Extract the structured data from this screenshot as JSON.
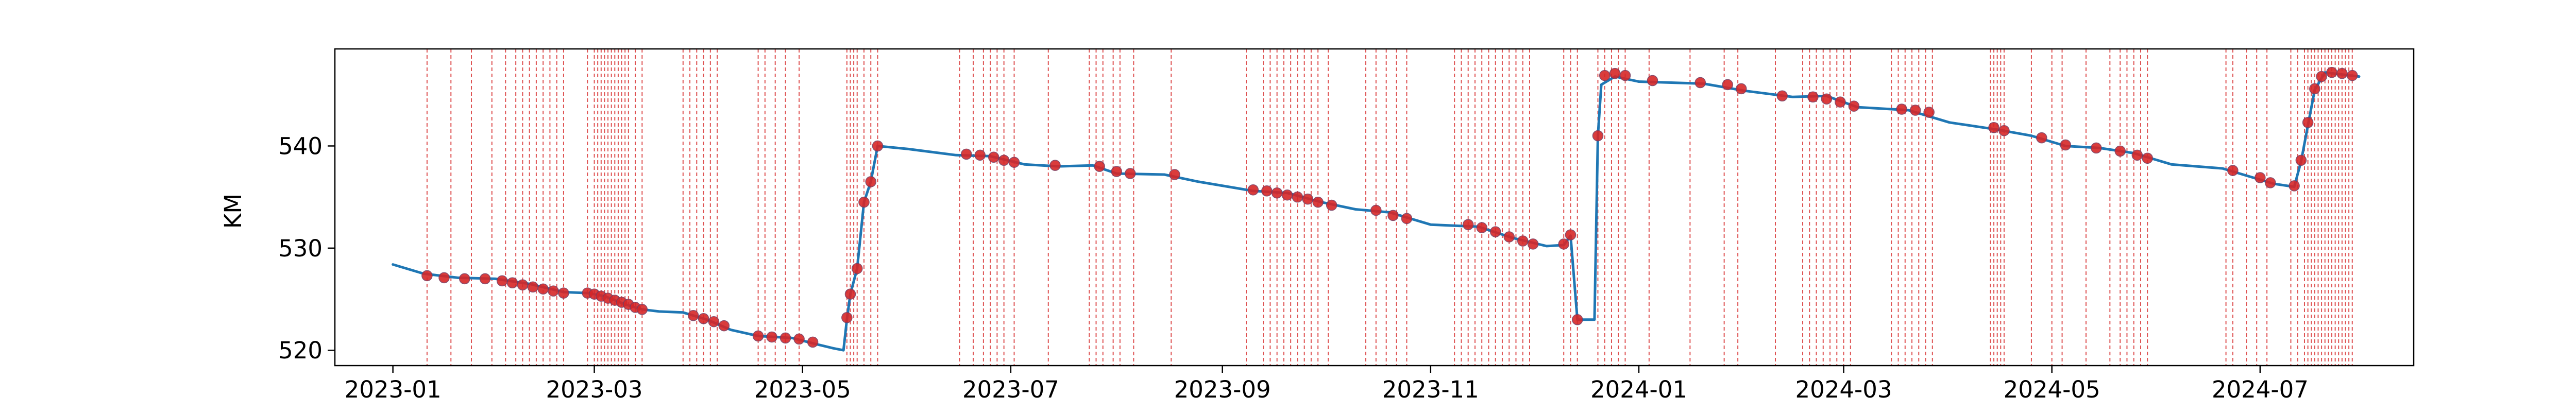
{
  "chart_data": {
    "type": "line",
    "title": "",
    "xlabel": "",
    "ylabel": "KM",
    "xlim": [
      "2022-12-15",
      "2024-08-15"
    ],
    "ylim": [
      518.5,
      549.5
    ],
    "x_ticks": [
      "2023-01",
      "2023-03",
      "2023-05",
      "2023-07",
      "2023-09",
      "2023-11",
      "2024-01",
      "2024-03",
      "2024-05",
      "2024-07"
    ],
    "y_ticks": [
      520,
      530,
      540
    ],
    "grid": false,
    "legend": "none",
    "colors": {
      "line": "#1f77b4",
      "markers": "#d62728",
      "vlines": "#d62728"
    },
    "series": [
      {
        "type": "line",
        "points": [
          [
            "2023-01-01",
            528.4
          ],
          [
            "2023-01-10",
            527.5
          ],
          [
            "2023-01-20",
            527.1
          ],
          [
            "2023-01-31",
            527.0
          ],
          [
            "2023-02-10",
            526.5
          ],
          [
            "2023-02-20",
            525.7
          ],
          [
            "2023-02-27",
            525.6
          ],
          [
            "2023-03-04",
            525.3
          ],
          [
            "2023-03-10",
            524.5
          ],
          [
            "2023-03-15",
            524.0
          ],
          [
            "2023-03-20",
            523.8
          ],
          [
            "2023-03-27",
            523.7
          ],
          [
            "2023-04-03",
            523.0
          ],
          [
            "2023-04-10",
            522.0
          ],
          [
            "2023-04-18",
            521.4
          ],
          [
            "2023-04-28",
            521.2
          ],
          [
            "2023-05-05",
            520.6
          ],
          [
            "2023-05-10",
            520.2
          ],
          [
            "2023-05-13",
            520.0
          ],
          [
            "2023-05-14",
            523.0
          ],
          [
            "2023-05-15",
            525.5
          ],
          [
            "2023-05-17",
            528.0
          ],
          [
            "2023-05-19",
            534.5
          ],
          [
            "2023-05-21",
            536.5
          ],
          [
            "2023-05-23",
            540.0
          ],
          [
            "2023-06-01",
            539.7
          ],
          [
            "2023-06-15",
            539.1
          ],
          [
            "2023-06-25",
            539.0
          ],
          [
            "2023-07-05",
            538.2
          ],
          [
            "2023-07-15",
            538.0
          ],
          [
            "2023-07-25",
            538.1
          ],
          [
            "2023-08-01",
            537.3
          ],
          [
            "2023-08-15",
            537.2
          ],
          [
            "2023-08-25",
            536.5
          ],
          [
            "2023-09-10",
            535.6
          ],
          [
            "2023-09-20",
            535.4
          ],
          [
            "2023-09-30",
            534.5
          ],
          [
            "2023-10-10",
            533.8
          ],
          [
            "2023-10-20",
            533.5
          ],
          [
            "2023-11-01",
            532.3
          ],
          [
            "2023-11-15",
            532.1
          ],
          [
            "2023-11-25",
            531.0
          ],
          [
            "2023-12-05",
            530.2
          ],
          [
            "2023-12-10",
            530.3
          ],
          [
            "2023-12-12",
            531.2
          ],
          [
            "2023-12-14",
            523.0
          ],
          [
            "2023-12-19",
            523.0
          ],
          [
            "2023-12-20",
            541.0
          ],
          [
            "2023-12-21",
            546.0
          ],
          [
            "2023-12-25",
            546.8
          ],
          [
            "2024-01-01",
            546.3
          ],
          [
            "2024-01-20",
            546.1
          ],
          [
            "2024-02-01",
            545.4
          ],
          [
            "2024-02-15",
            544.8
          ],
          [
            "2024-02-25",
            544.9
          ],
          [
            "2024-03-05",
            543.8
          ],
          [
            "2024-03-20",
            543.5
          ],
          [
            "2024-04-01",
            542.3
          ],
          [
            "2024-04-15",
            541.6
          ],
          [
            "2024-04-25",
            541.0
          ],
          [
            "2024-05-05",
            540.0
          ],
          [
            "2024-05-15",
            539.8
          ],
          [
            "2024-05-25",
            539.3
          ],
          [
            "2024-06-05",
            538.2
          ],
          [
            "2024-06-20",
            537.8
          ],
          [
            "2024-06-28",
            537.0
          ],
          [
            "2024-07-05",
            536.3
          ],
          [
            "2024-07-11",
            536.0
          ],
          [
            "2024-07-13",
            538.5
          ],
          [
            "2024-07-15",
            542.0
          ],
          [
            "2024-07-17",
            545.5
          ],
          [
            "2024-07-20",
            547.2
          ],
          [
            "2024-07-25",
            547.0
          ],
          [
            "2024-07-30",
            546.8
          ]
        ]
      },
      {
        "type": "scatter",
        "points": [
          [
            "2023-01-11",
            527.3
          ],
          [
            "2023-01-16",
            527.1
          ],
          [
            "2023-01-22",
            527.0
          ],
          [
            "2023-01-28",
            527.0
          ],
          [
            "2023-02-02",
            526.8
          ],
          [
            "2023-02-05",
            526.6
          ],
          [
            "2023-02-08",
            526.4
          ],
          [
            "2023-02-11",
            526.2
          ],
          [
            "2023-02-14",
            526.0
          ],
          [
            "2023-02-17",
            525.8
          ],
          [
            "2023-02-20",
            525.6
          ],
          [
            "2023-02-27",
            525.6
          ],
          [
            "2023-03-01",
            525.5
          ],
          [
            "2023-03-03",
            525.3
          ],
          [
            "2023-03-05",
            525.1
          ],
          [
            "2023-03-07",
            524.9
          ],
          [
            "2023-03-09",
            524.7
          ],
          [
            "2023-03-11",
            524.5
          ],
          [
            "2023-03-13",
            524.2
          ],
          [
            "2023-03-15",
            524.0
          ],
          [
            "2023-03-30",
            523.4
          ],
          [
            "2023-04-02",
            523.1
          ],
          [
            "2023-04-05",
            522.8
          ],
          [
            "2023-04-08",
            522.4
          ],
          [
            "2023-04-18",
            521.4
          ],
          [
            "2023-04-22",
            521.3
          ],
          [
            "2023-04-26",
            521.2
          ],
          [
            "2023-04-30",
            521.1
          ],
          [
            "2023-05-04",
            520.8
          ],
          [
            "2023-05-14",
            523.2
          ],
          [
            "2023-05-15",
            525.5
          ],
          [
            "2023-05-17",
            528.0
          ],
          [
            "2023-05-19",
            534.5
          ],
          [
            "2023-05-21",
            536.5
          ],
          [
            "2023-05-23",
            540.0
          ],
          [
            "2023-06-18",
            539.2
          ],
          [
            "2023-06-22",
            539.1
          ],
          [
            "2023-06-26",
            538.9
          ],
          [
            "2023-06-29",
            538.6
          ],
          [
            "2023-07-02",
            538.4
          ],
          [
            "2023-07-14",
            538.1
          ],
          [
            "2023-07-27",
            538.0
          ],
          [
            "2023-08-01",
            537.5
          ],
          [
            "2023-08-05",
            537.3
          ],
          [
            "2023-08-18",
            537.2
          ],
          [
            "2023-09-10",
            535.7
          ],
          [
            "2023-09-14",
            535.6
          ],
          [
            "2023-09-17",
            535.4
          ],
          [
            "2023-09-20",
            535.2
          ],
          [
            "2023-09-23",
            535.0
          ],
          [
            "2023-09-26",
            534.8
          ],
          [
            "2023-09-29",
            534.5
          ],
          [
            "2023-10-03",
            534.2
          ],
          [
            "2023-10-16",
            533.7
          ],
          [
            "2023-10-21",
            533.2
          ],
          [
            "2023-10-25",
            532.9
          ],
          [
            "2023-11-12",
            532.3
          ],
          [
            "2023-11-16",
            532.0
          ],
          [
            "2023-11-20",
            531.6
          ],
          [
            "2023-11-24",
            531.1
          ],
          [
            "2023-11-28",
            530.7
          ],
          [
            "2023-12-01",
            530.4
          ],
          [
            "2023-12-10",
            530.4
          ],
          [
            "2023-12-12",
            531.3
          ],
          [
            "2023-12-14",
            523.0
          ],
          [
            "2023-12-20",
            541.0
          ],
          [
            "2023-12-22",
            546.9
          ],
          [
            "2023-12-25",
            547.1
          ],
          [
            "2023-12-28",
            546.9
          ],
          [
            "2024-01-05",
            546.4
          ],
          [
            "2024-01-19",
            546.2
          ],
          [
            "2024-01-27",
            546.0
          ],
          [
            "2024-01-31",
            545.6
          ],
          [
            "2024-02-12",
            544.9
          ],
          [
            "2024-02-21",
            544.8
          ],
          [
            "2024-02-25",
            544.6
          ],
          [
            "2024-02-29",
            544.3
          ],
          [
            "2024-03-04",
            543.9
          ],
          [
            "2024-03-18",
            543.6
          ],
          [
            "2024-03-22",
            543.5
          ],
          [
            "2024-03-26",
            543.3
          ],
          [
            "2024-04-14",
            541.8
          ],
          [
            "2024-04-17",
            541.5
          ],
          [
            "2024-04-28",
            540.8
          ],
          [
            "2024-05-05",
            540.1
          ],
          [
            "2024-05-14",
            539.8
          ],
          [
            "2024-05-21",
            539.5
          ],
          [
            "2024-05-26",
            539.1
          ],
          [
            "2024-05-29",
            538.8
          ],
          [
            "2024-06-23",
            537.6
          ],
          [
            "2024-07-01",
            536.9
          ],
          [
            "2024-07-04",
            536.4
          ],
          [
            "2024-07-11",
            536.1
          ],
          [
            "2024-07-13",
            538.6
          ],
          [
            "2024-07-15",
            542.3
          ],
          [
            "2024-07-17",
            545.6
          ],
          [
            "2024-07-19",
            546.8
          ],
          [
            "2024-07-22",
            547.2
          ],
          [
            "2024-07-25",
            547.1
          ],
          [
            "2024-07-28",
            546.9
          ]
        ]
      }
    ],
    "vlines_note_dates": [
      "2023-01-11",
      "2023-01-18",
      "2023-01-24",
      "2023-01-30",
      "2023-02-03",
      "2023-02-06",
      "2023-02-08",
      "2023-02-10",
      "2023-02-12",
      "2023-02-14",
      "2023-02-16",
      "2023-02-18",
      "2023-02-20",
      "2023-02-27",
      "2023-03-01",
      "2023-03-02",
      "2023-03-03",
      "2023-03-04",
      "2023-03-05",
      "2023-03-06",
      "2023-03-07",
      "2023-03-08",
      "2023-03-09",
      "2023-03-10",
      "2023-03-11",
      "2023-03-13",
      "2023-03-15",
      "2023-03-27",
      "2023-03-29",
      "2023-03-31",
      "2023-04-02",
      "2023-04-04",
      "2023-04-06",
      "2023-04-18",
      "2023-04-20",
      "2023-04-23",
      "2023-04-26",
      "2023-04-30",
      "2023-05-14",
      "2023-05-15",
      "2023-05-16",
      "2023-05-17",
      "2023-05-19",
      "2023-05-21",
      "2023-05-23",
      "2023-06-16",
      "2023-06-20",
      "2023-06-23",
      "2023-06-25",
      "2023-06-27",
      "2023-06-29",
      "2023-07-02",
      "2023-07-12",
      "2023-07-24",
      "2023-07-26",
      "2023-07-28",
      "2023-07-31",
      "2023-08-02",
      "2023-08-06",
      "2023-08-17",
      "2023-09-08",
      "2023-09-13",
      "2023-09-15",
      "2023-09-17",
      "2023-09-19",
      "2023-09-21",
      "2023-09-23",
      "2023-09-25",
      "2023-09-27",
      "2023-09-29",
      "2023-10-02",
      "2023-10-13",
      "2023-10-16",
      "2023-10-19",
      "2023-10-22",
      "2023-10-25",
      "2023-11-08",
      "2023-11-10",
      "2023-11-12",
      "2023-11-14",
      "2023-11-16",
      "2023-11-18",
      "2023-11-20",
      "2023-11-22",
      "2023-11-24",
      "2023-11-26",
      "2023-11-28",
      "2023-11-30",
      "2023-12-10",
      "2023-12-12",
      "2023-12-14",
      "2023-12-20",
      "2023-12-22",
      "2023-12-24",
      "2023-12-26",
      "2023-12-28",
      "2024-01-04",
      "2024-01-16",
      "2024-01-26",
      "2024-01-30",
      "2024-02-10",
      "2024-02-18",
      "2024-02-20",
      "2024-02-22",
      "2024-02-24",
      "2024-02-26",
      "2024-02-28",
      "2024-03-01",
      "2024-03-03",
      "2024-03-15",
      "2024-03-17",
      "2024-03-19",
      "2024-03-21",
      "2024-03-23",
      "2024-03-25",
      "2024-03-27",
      "2024-04-13",
      "2024-04-14",
      "2024-04-15",
      "2024-04-16",
      "2024-04-17",
      "2024-04-25",
      "2024-05-01",
      "2024-05-04",
      "2024-05-11",
      "2024-05-18",
      "2024-05-21",
      "2024-05-23",
      "2024-05-25",
      "2024-05-27",
      "2024-05-29",
      "2024-06-21",
      "2024-06-23",
      "2024-06-27",
      "2024-06-30",
      "2024-07-03",
      "2024-07-10",
      "2024-07-12",
      "2024-07-14",
      "2024-07-15",
      "2024-07-16",
      "2024-07-17",
      "2024-07-18",
      "2024-07-19",
      "2024-07-20",
      "2024-07-21",
      "2024-07-22",
      "2024-07-23",
      "2024-07-24",
      "2024-07-25",
      "2024-07-26",
      "2024-07-27",
      "2024-07-28"
    ]
  }
}
